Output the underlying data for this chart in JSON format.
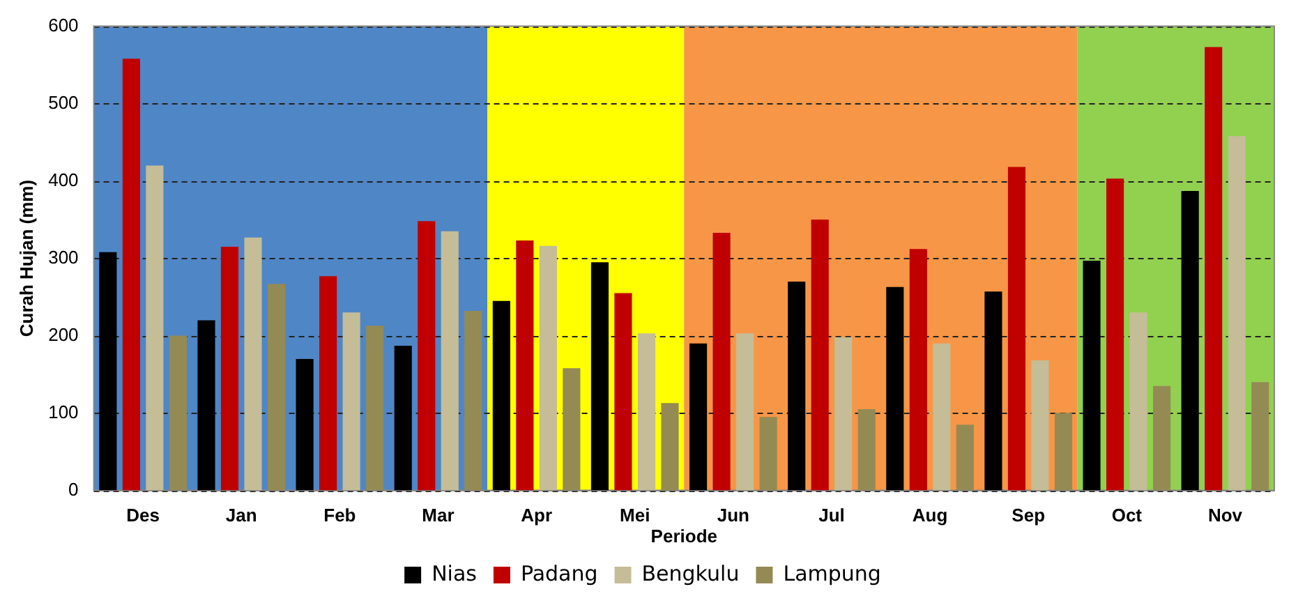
{
  "chart_data": {
    "type": "bar",
    "xlabel": "Periode",
    "ylabel": "Curah Hujan (mm)",
    "categories": [
      "Des",
      "Jan",
      "Feb",
      "Mar",
      "Apr",
      "Mei",
      "Jun",
      "Jul",
      "Aug",
      "Sep",
      "Oct",
      "Nov"
    ],
    "series": [
      {
        "name": "Nias",
        "color": "#000000",
        "values": [
          308,
          220,
          170,
          187,
          245,
          295,
          190,
          270,
          263,
          257,
          297,
          387
        ]
      },
      {
        "name": "Padang",
        "color": "#c00000",
        "values": [
          558,
          315,
          277,
          348,
          323,
          255,
          333,
          350,
          312,
          418,
          403,
          573
        ]
      },
      {
        "name": "Bengkulu",
        "color": "#c4bd97",
        "values": [
          420,
          327,
          230,
          335,
          316,
          203,
          203,
          198,
          190,
          168,
          230,
          458
        ]
      },
      {
        "name": "Lampung",
        "color": "#948a54",
        "values": [
          200,
          267,
          213,
          232,
          158,
          113,
          95,
          105,
          85,
          100,
          135,
          140
        ]
      }
    ],
    "ylim": [
      0,
      600
    ],
    "yticks": [
      0,
      100,
      200,
      300,
      400,
      500,
      600
    ],
    "grid": "y",
    "legend": "bottom",
    "bands": [
      {
        "axis": "x",
        "from": "Des",
        "to": "Mar",
        "color": "#4f86c6"
      },
      {
        "axis": "x",
        "from": "Apr",
        "to": "Mei",
        "color": "#ffff00"
      },
      {
        "axis": "x",
        "from": "Jun",
        "to": "Sep",
        "color": "#f79646"
      },
      {
        "axis": "x",
        "from": "Oct",
        "to": "Nov",
        "color": "#92d050"
      }
    ]
  }
}
